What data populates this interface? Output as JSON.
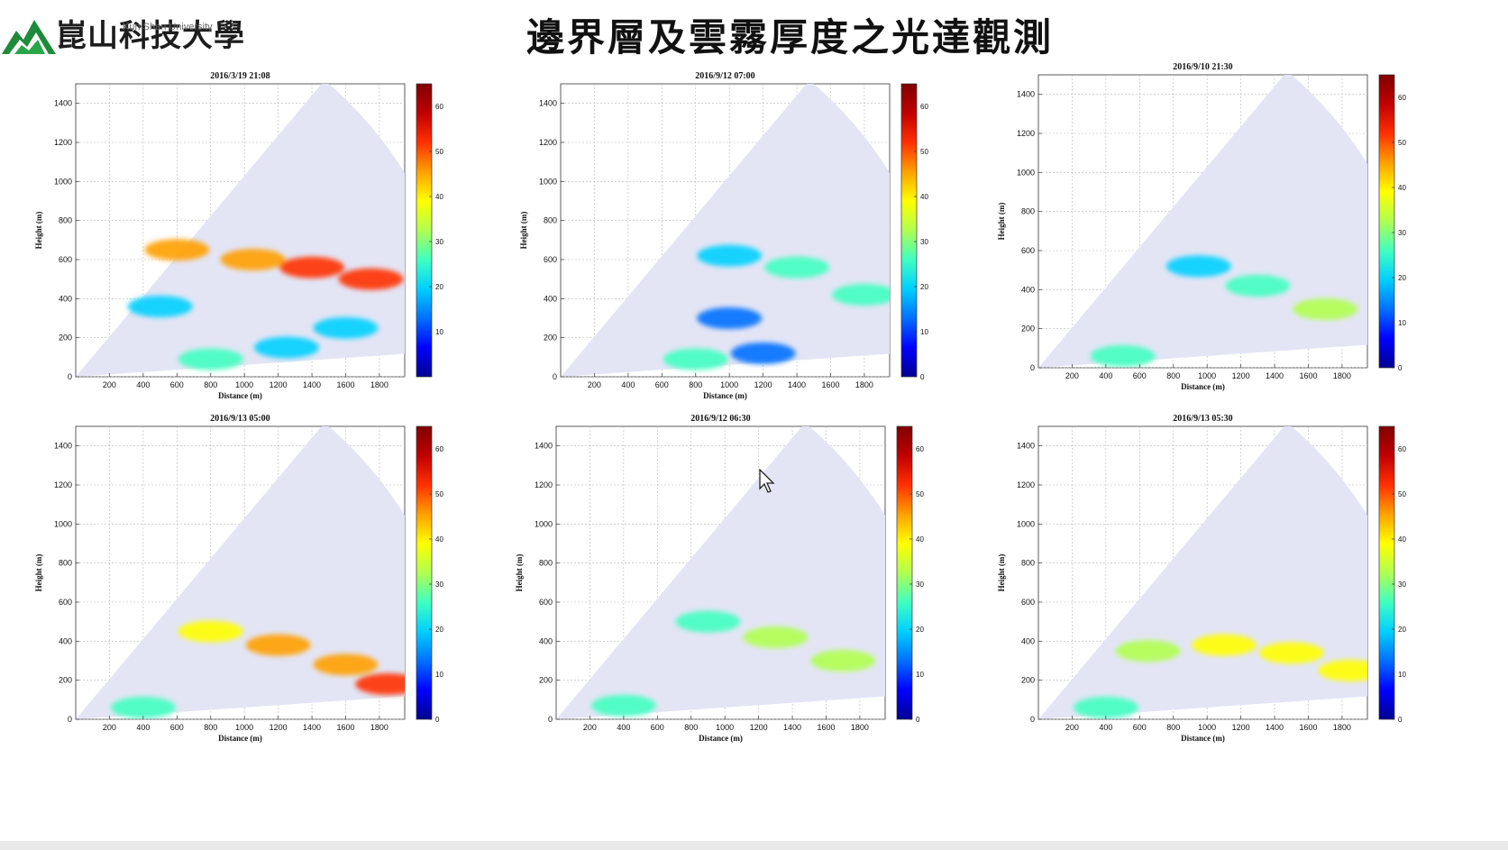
{
  "page": {
    "title": "邊界層及雲霧厚度之光達觀測",
    "logo": {
      "name_cn": "崑山科技大學",
      "name_en": "Kun Shan University"
    }
  },
  "colors": {
    "background": "#ffffff",
    "plot_fill": "#e3e5f5",
    "grid": "#b8b8b8",
    "colormap": [
      "#000090",
      "#0000ff",
      "#0070ff",
      "#00d0ff",
      "#40ffc0",
      "#b0ff50",
      "#ffff00",
      "#ffa000",
      "#ff3000",
      "#c00000",
      "#800000"
    ]
  },
  "chart_data": [
    {
      "type": "heatmap",
      "title": "2016/3/19 21:08",
      "xlabel": "Distance (m)",
      "ylabel": "Height (m)",
      "xlim": [
        0,
        1950
      ],
      "ylim": [
        0,
        1500
      ],
      "xticks": [
        200,
        400,
        600,
        800,
        1000,
        1200,
        1400,
        1600,
        1800
      ],
      "yticks": [
        0,
        200,
        400,
        600,
        800,
        1000,
        1200,
        1400
      ],
      "colorbar": {
        "range": [
          0,
          65
        ],
        "ticks": [
          10,
          20,
          30,
          40,
          50,
          60
        ]
      },
      "grid": true,
      "features": [
        {
          "x": 1250,
          "y": 150,
          "intensity": 22
        },
        {
          "x": 800,
          "y": 90,
          "intensity": 28
        },
        {
          "x": 1600,
          "y": 250,
          "intensity": 18
        },
        {
          "x": 600,
          "y": 650,
          "intensity": 45
        },
        {
          "x": 1050,
          "y": 600,
          "intensity": 48
        },
        {
          "x": 1400,
          "y": 560,
          "intensity": 52
        },
        {
          "x": 1750,
          "y": 500,
          "intensity": 55
        },
        {
          "x": 500,
          "y": 360,
          "intensity": 20
        }
      ]
    },
    {
      "type": "heatmap",
      "title": "2016/9/12 07:00",
      "xlabel": "Distance (m)",
      "ylabel": "Height (m)",
      "xlim": [
        0,
        1950
      ],
      "ylim": [
        0,
        1500
      ],
      "xticks": [
        200,
        400,
        600,
        800,
        1000,
        1200,
        1400,
        1600,
        1800
      ],
      "yticks": [
        0,
        200,
        400,
        600,
        800,
        1000,
        1200,
        1400
      ],
      "colorbar": {
        "range": [
          0,
          65
        ],
        "ticks": [
          0,
          10,
          20,
          30,
          40,
          50,
          60
        ]
      },
      "grid": true,
      "features": [
        {
          "x": 1000,
          "y": 620,
          "intensity": 22
        },
        {
          "x": 1400,
          "y": 560,
          "intensity": 24
        },
        {
          "x": 1800,
          "y": 420,
          "intensity": 26
        },
        {
          "x": 800,
          "y": 90,
          "intensity": 28
        },
        {
          "x": 1200,
          "y": 120,
          "intensity": 16
        },
        {
          "x": 1000,
          "y": 300,
          "intensity": 10
        }
      ]
    },
    {
      "type": "heatmap",
      "title": "2016/9/10 21:30",
      "xlabel": "Distance (m)",
      "ylabel": "Height (m)",
      "xlim": [
        0,
        1950
      ],
      "ylim": [
        0,
        1500
      ],
      "xticks": [
        200,
        400,
        600,
        800,
        1000,
        1200,
        1400,
        1600,
        1800
      ],
      "yticks": [
        0,
        200,
        400,
        600,
        800,
        1000,
        1200,
        1400
      ],
      "colorbar": {
        "range": [
          0,
          65
        ],
        "ticks": [
          0,
          10,
          20,
          30,
          40,
          50,
          60
        ]
      },
      "grid": true,
      "features": [
        {
          "x": 950,
          "y": 520,
          "intensity": 22
        },
        {
          "x": 1300,
          "y": 420,
          "intensity": 26
        },
        {
          "x": 1700,
          "y": 300,
          "intensity": 30
        },
        {
          "x": 500,
          "y": 60,
          "intensity": 26
        }
      ]
    },
    {
      "type": "heatmap",
      "title": "2016/9/13 05:00",
      "xlabel": "Distance (m)",
      "ylabel": "Height (m)",
      "xlim": [
        0,
        1950
      ],
      "ylim": [
        0,
        1500
      ],
      "xticks": [
        200,
        400,
        600,
        800,
        1000,
        1200,
        1400,
        1600,
        1800
      ],
      "yticks": [
        0,
        200,
        400,
        600,
        800,
        1000,
        1200,
        1400
      ],
      "colorbar": {
        "range": [
          0,
          65
        ],
        "ticks": [
          0,
          10,
          20,
          30,
          40,
          50,
          60
        ]
      },
      "grid": true,
      "features": [
        {
          "x": 800,
          "y": 450,
          "intensity": 40
        },
        {
          "x": 1200,
          "y": 380,
          "intensity": 44
        },
        {
          "x": 1600,
          "y": 280,
          "intensity": 46
        },
        {
          "x": 1850,
          "y": 180,
          "intensity": 50
        },
        {
          "x": 400,
          "y": 60,
          "intensity": 24
        }
      ]
    },
    {
      "type": "heatmap",
      "title": "2016/9/12 06:30",
      "xlabel": "Distance (m)",
      "ylabel": "Height (m)",
      "xlim": [
        0,
        1950
      ],
      "ylim": [
        0,
        1500
      ],
      "xticks": [
        200,
        400,
        600,
        800,
        1000,
        1200,
        1400,
        1600,
        1800
      ],
      "yticks": [
        0,
        200,
        400,
        600,
        800,
        1000,
        1200,
        1400
      ],
      "colorbar": {
        "range": [
          0,
          65
        ],
        "ticks": [
          0,
          10,
          20,
          30,
          40,
          50,
          60
        ]
      },
      "grid": true,
      "features": [
        {
          "x": 900,
          "y": 500,
          "intensity": 26
        },
        {
          "x": 1300,
          "y": 420,
          "intensity": 30
        },
        {
          "x": 1700,
          "y": 300,
          "intensity": 34
        },
        {
          "x": 400,
          "y": 70,
          "intensity": 26
        }
      ]
    },
    {
      "type": "heatmap",
      "title": "2016/9/13 05:30",
      "xlabel": "Distance (m)",
      "ylabel": "Height (m)",
      "xlim": [
        0,
        1950
      ],
      "ylim": [
        0,
        1500
      ],
      "xticks": [
        200,
        400,
        600,
        800,
        1000,
        1200,
        1400,
        1600,
        1800
      ],
      "yticks": [
        0,
        200,
        400,
        600,
        800,
        1000,
        1200,
        1400
      ],
      "colorbar": {
        "range": [
          0,
          65
        ],
        "ticks": [
          0,
          10,
          20,
          30,
          40,
          50,
          60
        ]
      },
      "grid": true,
      "features": [
        {
          "x": 650,
          "y": 350,
          "intensity": 34
        },
        {
          "x": 1100,
          "y": 380,
          "intensity": 36
        },
        {
          "x": 1500,
          "y": 340,
          "intensity": 38
        },
        {
          "x": 1850,
          "y": 250,
          "intensity": 36
        },
        {
          "x": 400,
          "y": 60,
          "intensity": 24
        }
      ]
    }
  ]
}
